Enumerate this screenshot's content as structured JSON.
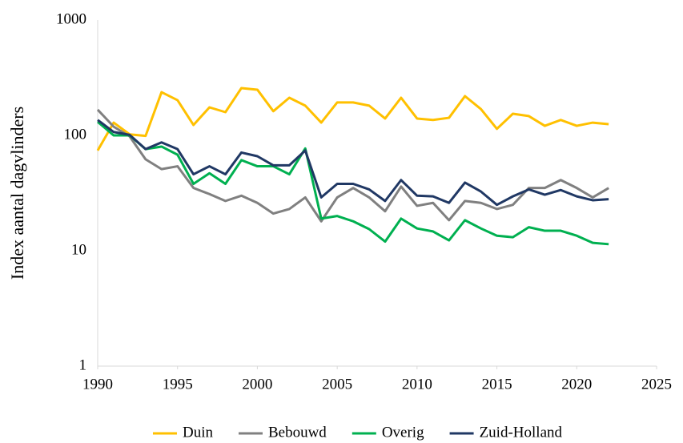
{
  "chart_data": {
    "type": "line",
    "y_label": "Index aantal dagvlinders",
    "x": [
      1990,
      1991,
      1992,
      1993,
      1994,
      1995,
      1996,
      1997,
      1998,
      1999,
      2000,
      2001,
      2002,
      2003,
      2004,
      2005,
      2006,
      2007,
      2008,
      2009,
      2010,
      2011,
      2012,
      2013,
      2014,
      2015,
      2016,
      2017,
      2018,
      2019,
      2020,
      2021,
      2022
    ],
    "series": [
      {
        "name": "Duin",
        "color": "#ffc000",
        "values": [
          74,
          129,
          102,
          99,
          237,
          202,
          123,
          175,
          159,
          257,
          249,
          162,
          212,
          181,
          129,
          193,
          193,
          181,
          140,
          212,
          140,
          136,
          142,
          219,
          169,
          114,
          154,
          147,
          121,
          136,
          121,
          129,
          125
        ]
      },
      {
        "name": "Bebouwd",
        "color": "#808080",
        "values": [
          167,
          119,
          98,
          62,
          51,
          54,
          35,
          31,
          27,
          30,
          26,
          21,
          23,
          29,
          18,
          29,
          35,
          29,
          22,
          36,
          24.5,
          26,
          18.4,
          27,
          26,
          23,
          25,
          35,
          35,
          41,
          35,
          29,
          35
        ]
      },
      {
        "name": "Overig",
        "color": "#00b050",
        "values": [
          131,
          100,
          100,
          76,
          80,
          68,
          38,
          47,
          38,
          61,
          54,
          54,
          46,
          77,
          19,
          20,
          18,
          15.4,
          12,
          19,
          15.6,
          14.7,
          12.3,
          18.4,
          15.6,
          13.5,
          13.1,
          16,
          14.9,
          14.9,
          13.5,
          11.7,
          11.4
        ]
      },
      {
        "name": "Zuid-Holland",
        "color": "#203864",
        "values": [
          136,
          107,
          101,
          76,
          87,
          76,
          46,
          54,
          46,
          71,
          66,
          55,
          55,
          74,
          29,
          38,
          38,
          34,
          27,
          41,
          30,
          29.6,
          26,
          39,
          32.6,
          25,
          29.6,
          34,
          30.6,
          33.6,
          29.6,
          27.4,
          28
        ]
      }
    ],
    "xlim": [
      1990,
      2025
    ],
    "xticks": [
      1990,
      1995,
      2000,
      2005,
      2010,
      2015,
      2020,
      2025
    ],
    "ylim": [
      1,
      1000
    ],
    "yticks": [
      1,
      10,
      100,
      1000
    ],
    "yscale": "log",
    "grid": false,
    "legend": "bottom"
  }
}
